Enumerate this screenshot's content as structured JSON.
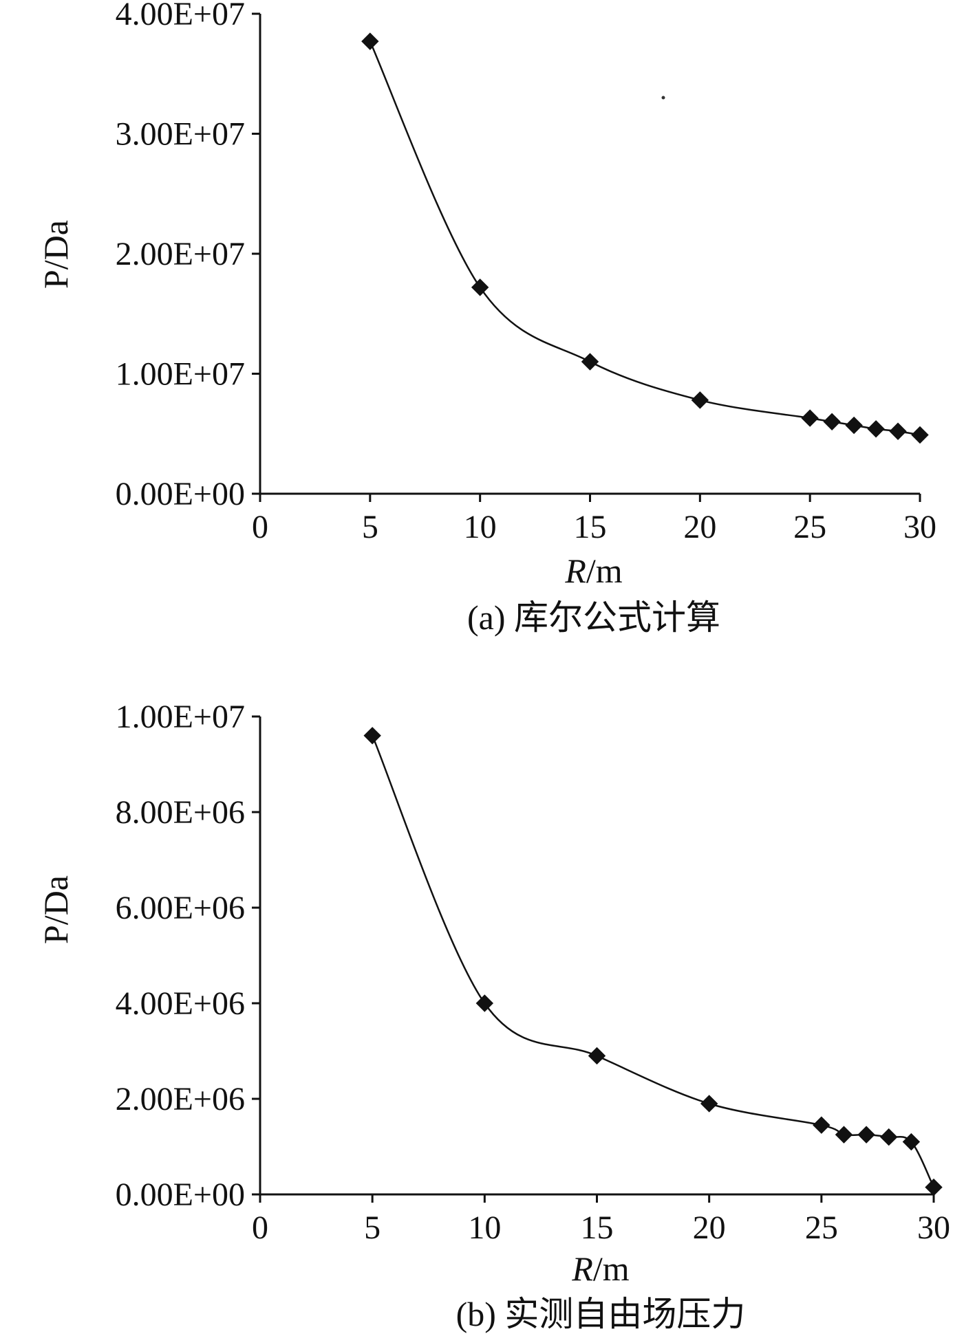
{
  "chart_data": [
    {
      "type": "line",
      "x": [
        5,
        10,
        15,
        20,
        25,
        26,
        27,
        28,
        29,
        30
      ],
      "series": [
        {
          "values": [
            37700000.0,
            17200000.0,
            11000000.0,
            7800000.0,
            6300000.0,
            6000000.0,
            5700000.0,
            5400000.0,
            5200000.0,
            4900000.0
          ]
        }
      ],
      "xlabel_italic": "R",
      "xlabel_unit": "/m",
      "ylabel": "P/Da",
      "xlim": [
        0,
        30
      ],
      "ylim": [
        0,
        40000000.0
      ],
      "x_ticks": [
        "0",
        "5",
        "10",
        "15",
        "20",
        "25",
        "30"
      ],
      "x_tick_values": [
        0,
        5,
        10,
        15,
        20,
        25,
        30
      ],
      "y_ticks": [
        "0.00E+00",
        "1.00E+07",
        "2.00E+07",
        "3.00E+07",
        "4.00E+07"
      ],
      "y_tick_values": [
        0,
        10000000.0,
        20000000.0,
        30000000.0,
        40000000.0
      ],
      "caption": "(a) 库尔公式计算",
      "marker": "diamond",
      "grid": false,
      "line_color": "#111111"
    },
    {
      "type": "line",
      "x": [
        5,
        10,
        15,
        20,
        25,
        26,
        27,
        28,
        29,
        30
      ],
      "series": [
        {
          "values": [
            9600000.0,
            4000000.0,
            2900000.0,
            1900000.0,
            1450000.0,
            1250000.0,
            1250000.0,
            1200000.0,
            1100000.0,
            150000.0
          ]
        }
      ],
      "xlabel_italic": "R",
      "xlabel_unit": "/m",
      "ylabel": "P/Da",
      "xlim": [
        0,
        30
      ],
      "ylim": [
        0,
        10000000.0
      ],
      "x_ticks": [
        "0",
        "5",
        "10",
        "15",
        "20",
        "25",
        "30"
      ],
      "x_tick_values": [
        0,
        5,
        10,
        15,
        20,
        25,
        30
      ],
      "y_ticks": [
        "0.00E+00",
        "2.00E+06",
        "4.00E+06",
        "6.00E+06",
        "8.00E+06",
        "1.00E+07"
      ],
      "y_tick_values": [
        0,
        2000000.0,
        4000000.0,
        6000000.0,
        8000000.0,
        10000000.0
      ],
      "caption": "(b) 实测自由场压力",
      "marker": "diamond",
      "grid": false,
      "line_color": "#111111"
    }
  ]
}
